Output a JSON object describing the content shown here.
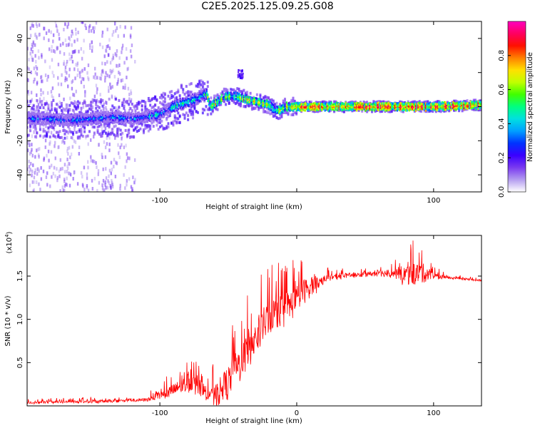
{
  "figure": {
    "title": "C2E5.2025.125.09.25.G08"
  },
  "chart_data": [
    {
      "type": "heatmap",
      "xlabel": "Height of straight line (km)",
      "ylabel": "Frequency (Hz)",
      "xlim": [
        -197,
        135
      ],
      "ylim": [
        -50,
        50
      ],
      "x_ticks": [
        -100,
        0,
        100
      ],
      "x_tick_labels": [
        "-100",
        "",
        "100"
      ],
      "y_ticks": [
        -40,
        -20,
        0,
        20,
        40
      ],
      "grid": false,
      "colorbar": {
        "label": "Normalized spectral amplitude",
        "range": [
          0.0,
          1.0
        ],
        "ticks": [
          0.0,
          0.2,
          0.4,
          0.6,
          0.8
        ],
        "colors": [
          "#ffffff",
          "#b49df0",
          "#7a3af0",
          "#3a00ff",
          "#0033ff",
          "#00a0ff",
          "#00e0e0",
          "#00ff80",
          "#40ff00",
          "#c0ff00",
          "#ffe000",
          "#ff8000",
          "#ff1000",
          "#ff0060",
          "#ff00c0"
        ]
      },
      "ridge": {
        "x": [
          -197,
          -180,
          -165,
          -150,
          -135,
          -120,
          -110,
          -100,
          -90,
          -80,
          -72,
          -66,
          -63,
          -58,
          -52,
          -45,
          -40,
          -35,
          -30,
          -25,
          -20,
          -16,
          -12,
          -8,
          0,
          20,
          40,
          60,
          80,
          100,
          120,
          135
        ],
        "y": [
          -7,
          -7,
          -8,
          -7,
          -6,
          -7,
          -6,
          -4,
          0,
          3,
          5,
          8,
          0,
          3,
          6,
          6,
          5,
          4,
          3,
          2,
          1,
          -2,
          -2,
          0,
          0,
          0,
          0,
          0,
          0,
          0,
          0.5,
          1
        ]
      }
    },
    {
      "type": "line",
      "xlabel": "Height of straight line (km)",
      "ylabel": "SNR (10 * v/v)",
      "y_multiplier_label": "(x10",
      "y_multiplier_exponent": "4",
      "y_multiplier_close": ")",
      "xlim": [
        -197,
        135
      ],
      "ylim": [
        0,
        1.97
      ],
      "x_ticks": [
        -100,
        0,
        100
      ],
      "x_tick_labels": [
        "-100",
        "0",
        "100"
      ],
      "y_ticks": [
        0.5,
        1.0,
        1.5
      ],
      "y_tick_labels": [
        "0.5",
        "1.0",
        "1.5"
      ],
      "grid": false,
      "series": [
        {
          "color": "#ff0000",
          "envelope": {
            "x": [
              -197,
              -150,
              -110,
              -100,
              -90,
              -85,
              -80,
              -75,
              -70,
              -65,
              -60,
              -55,
              -50,
              -45,
              -40,
              -35,
              -30,
              -25,
              -20,
              -15,
              -10,
              -5,
              0,
              5,
              10,
              15,
              20,
              30,
              40,
              50,
              60,
              70,
              80,
              85,
              90,
              95,
              100,
              110,
              120,
              135
            ],
            "y": [
              0.04,
              0.05,
              0.07,
              0.12,
              0.18,
              0.22,
              0.25,
              0.25,
              0.2,
              0.14,
              0.1,
              0.18,
              0.28,
              0.4,
              0.52,
              0.65,
              0.78,
              0.92,
              1.02,
              1.08,
              1.12,
              1.16,
              1.22,
              1.32,
              1.38,
              1.42,
              1.47,
              1.5,
              1.51,
              1.52,
              1.53,
              1.53,
              1.52,
              1.52,
              1.53,
              1.53,
              1.5,
              1.48,
              1.47,
              1.45
            ]
          },
          "noise_amplitude": {
            "x": [
              -197,
              -110,
              -100,
              -80,
              -65,
              -55,
              -40,
              -20,
              0,
              10,
              20,
              40,
              70,
              78,
              90,
              100,
              110,
              135
            ],
            "y": [
              0.03,
              0.04,
              0.1,
              0.2,
              0.18,
              0.35,
              0.45,
              0.4,
              0.35,
              0.25,
              0.08,
              0.05,
              0.08,
              0.22,
              0.28,
              0.08,
              0.03,
              0.02
            ]
          }
        }
      ]
    }
  ]
}
